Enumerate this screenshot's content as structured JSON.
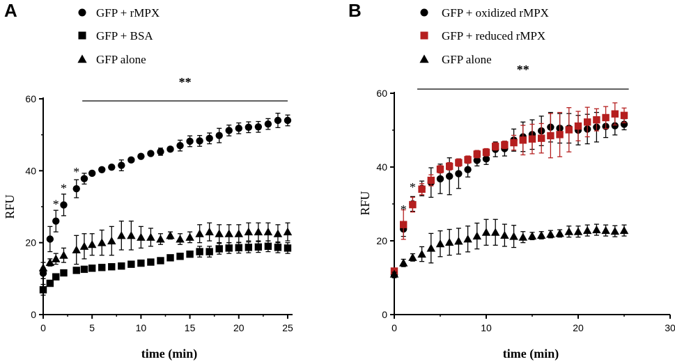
{
  "chart_data": [
    {
      "type": "scatter",
      "panel_label": "A",
      "xlabel": "time (min)",
      "ylabel": "RFU",
      "xlim": [
        0,
        25.5
      ],
      "ylim": [
        0,
        60
      ],
      "xticks": [
        0,
        5,
        10,
        15,
        20,
        25
      ],
      "yticks": [
        0,
        20,
        40,
        60
      ],
      "significance": {
        "label": "**",
        "x_start": 4,
        "x_end": 25
      },
      "star_points": [
        {
          "label": "*",
          "x": 1.3,
          "y": 26
        },
        {
          "label": "*",
          "x": 2.1,
          "y": 30.5
        },
        {
          "label": "*",
          "x": 3.4,
          "y": 35
        }
      ],
      "series": [
        {
          "name": "GFP + rMPX",
          "marker": "circle",
          "color": "#000000",
          "x": [
            0,
            0.7,
            1.3,
            2.1,
            3.4,
            4.2,
            5,
            6,
            7,
            8,
            9,
            10,
            11,
            12,
            13,
            14,
            15,
            16,
            17,
            18,
            19,
            20,
            21,
            22,
            23,
            24,
            25
          ],
          "y": [
            11.5,
            21,
            26,
            30.5,
            35,
            37.8,
            39.3,
            40.3,
            41,
            41.5,
            43,
            44,
            44.8,
            45.3,
            46,
            47,
            48.2,
            48.3,
            49,
            49.8,
            51.2,
            51.8,
            52.1,
            52.2,
            53,
            54,
            54
          ],
          "err": [
            1.5,
            3.5,
            3,
            3,
            2.5,
            1.5,
            0.5,
            0.5,
            0.5,
            1.5,
            0.5,
            0.5,
            0.5,
            1,
            0.5,
            1.5,
            1.5,
            1.5,
            1.5,
            2,
            1.5,
            1.5,
            1.5,
            1.5,
            1.5,
            2,
            1.5
          ]
        },
        {
          "name": "GFP + BSA",
          "marker": "square",
          "color": "#000000",
          "x": [
            0,
            0.7,
            1.3,
            2.1,
            3.4,
            4.2,
            5,
            6,
            7,
            8,
            9,
            10,
            11,
            12,
            13,
            14,
            15,
            16,
            17,
            18,
            19,
            20,
            21,
            22,
            23,
            24,
            25
          ],
          "y": [
            6.9,
            8.7,
            10.5,
            11.6,
            12.3,
            12.6,
            12.9,
            13.1,
            13.3,
            13.5,
            14,
            14.3,
            14.6,
            15,
            15.8,
            16.2,
            16.8,
            17.5,
            17.5,
            18.3,
            18.5,
            18.6,
            18.7,
            18.8,
            19,
            18.7,
            18.5
          ],
          "err": [
            1.5,
            0.5,
            0.5,
            0.5,
            0.5,
            0.5,
            0.5,
            0.5,
            0.5,
            0.5,
            0.5,
            0.5,
            0.5,
            0.5,
            0.5,
            0.5,
            0.5,
            1.5,
            1.5,
            1.5,
            1.5,
            1.5,
            1.5,
            1.5,
            1.5,
            1.5,
            1.5
          ]
        },
        {
          "name": "GFP alone",
          "marker": "triangle",
          "color": "#000000",
          "x": [
            0,
            0.7,
            1.3,
            2.1,
            3.4,
            4.2,
            5,
            6,
            7,
            8,
            9,
            10,
            11,
            12,
            13,
            14,
            15,
            16,
            17,
            18,
            19,
            20,
            21,
            22,
            23,
            24,
            25
          ],
          "y": [
            13,
            14.5,
            15.5,
            16.5,
            18,
            19,
            19.5,
            20,
            20.5,
            22,
            22,
            21.5,
            21.5,
            21,
            22,
            21,
            21.5,
            22.5,
            23,
            22.5,
            22.5,
            22.5,
            23,
            23,
            23,
            22.5,
            23
          ],
          "err": [
            1.5,
            1,
            1.5,
            2,
            4,
            3.5,
            3,
            3.5,
            4,
            4,
            4,
            3,
            2.5,
            1.5,
            1,
            1.5,
            1.5,
            2.5,
            2.5,
            2.5,
            2.5,
            2.5,
            2.5,
            2.5,
            2.5,
            2.5,
            2.5
          ]
        }
      ]
    },
    {
      "type": "scatter",
      "panel_label": "B",
      "xlabel": "time (min)",
      "ylabel": "RFU",
      "xlim": [
        0,
        30
      ],
      "ylim": [
        0,
        60
      ],
      "xticks": [
        0,
        10,
        20,
        30
      ],
      "yticks": [
        0,
        20,
        40,
        60
      ],
      "significance": {
        "label": "**",
        "x_start": 2.5,
        "x_end": 25.5
      },
      "star_points": [
        {
          "label": "*",
          "x": 1,
          "y": 24
        },
        {
          "label": "*",
          "x": 2,
          "y": 30
        }
      ],
      "series": [
        {
          "name": "GFP + oxidized  rMPX",
          "marker": "circle",
          "color": "#000000",
          "x": [
            0,
            1,
            2,
            3,
            4,
            5,
            6,
            7,
            8,
            9,
            10,
            11,
            12,
            13,
            14,
            15,
            16,
            17,
            18,
            19,
            20,
            21,
            22,
            23,
            24,
            25
          ],
          "y": [
            10.8,
            23.2,
            30,
            34.2,
            35.8,
            36.8,
            37.5,
            38.2,
            39.3,
            41.8,
            42.2,
            44.8,
            45,
            47.3,
            48.2,
            48.8,
            49.8,
            50.8,
            50.5,
            50.5,
            50,
            50.3,
            50.8,
            51,
            51.2,
            51.6
          ],
          "err": [
            0.8,
            2,
            2,
            2,
            4,
            4,
            5,
            4,
            2,
            1.5,
            1.5,
            2,
            2,
            3,
            4,
            4,
            4,
            4,
            4,
            4,
            4,
            4,
            4,
            3,
            2.5,
            1.5
          ]
        },
        {
          "name": "GFP + reduced rMPX",
          "marker": "square",
          "color": "#B51F1F",
          "x": [
            0,
            1,
            2,
            3,
            4,
            5,
            6,
            7,
            8,
            9,
            10,
            11,
            12,
            13,
            14,
            15,
            16,
            17,
            18,
            19,
            20,
            21,
            22,
            23,
            24,
            25
          ],
          "y": [
            11.8,
            24.4,
            29.8,
            34,
            36.4,
            39.4,
            40.2,
            41.2,
            42,
            43.5,
            44,
            45.6,
            46,
            46.6,
            47.3,
            47.6,
            47.8,
            48.5,
            48.8,
            50.1,
            51.1,
            52.2,
            52.8,
            53.4,
            54.4,
            54
          ],
          "err": [
            0.5,
            4,
            2,
            1.5,
            1.5,
            1,
            1,
            1,
            1,
            1,
            1,
            1,
            1,
            2,
            4,
            4,
            4,
            6,
            6,
            6,
            4,
            4,
            3,
            3,
            3,
            2
          ]
        },
        {
          "name": "GFP alone",
          "marker": "triangle",
          "color": "#000000",
          "x": [
            0,
            1,
            2,
            3,
            4,
            5,
            6,
            7,
            8,
            9,
            10,
            11,
            12,
            13,
            14,
            15,
            16,
            17,
            18,
            19,
            20,
            21,
            22,
            23,
            24,
            25
          ],
          "y": [
            11,
            14,
            15.5,
            16.4,
            18,
            19.2,
            19.6,
            19.9,
            20.5,
            21.3,
            22.3,
            22.3,
            21.5,
            21.2,
            21,
            21.3,
            21.5,
            21.8,
            22,
            22.5,
            22.5,
            22.8,
            23,
            22.8,
            22.6,
            22.8
          ],
          "err": [
            0.5,
            1,
            1,
            2,
            4,
            3.5,
            3.5,
            3.5,
            3.5,
            3.5,
            3.5,
            3.5,
            3,
            3,
            1.5,
            1,
            1,
            1,
            1,
            1.5,
            1.5,
            1.5,
            1.5,
            1.5,
            1.5,
            1.5
          ]
        }
      ]
    }
  ]
}
